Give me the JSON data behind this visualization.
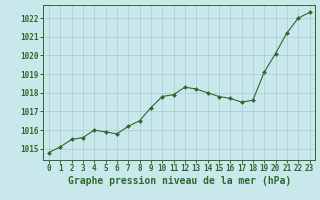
{
  "x": [
    0,
    1,
    2,
    3,
    4,
    5,
    6,
    7,
    8,
    9,
    10,
    11,
    12,
    13,
    14,
    15,
    16,
    17,
    18,
    19,
    20,
    21,
    22,
    23
  ],
  "y": [
    1014.8,
    1015.1,
    1015.5,
    1015.6,
    1016.0,
    1015.9,
    1015.8,
    1016.2,
    1016.5,
    1017.2,
    1017.8,
    1017.9,
    1018.3,
    1018.2,
    1018.0,
    1017.8,
    1017.7,
    1017.5,
    1017.6,
    1019.1,
    1020.1,
    1021.2,
    1022.0,
    1022.3
  ],
  "line_color": "#2d6a2d",
  "marker_color": "#2d6a2d",
  "bg_color": "#c8e8ec",
  "grid_color": "#a8ccd4",
  "title": "Graphe pression niveau de la mer (hPa)",
  "xlabel_ticks": [
    0,
    1,
    2,
    3,
    4,
    5,
    6,
    7,
    8,
    9,
    10,
    11,
    12,
    13,
    14,
    15,
    16,
    17,
    18,
    19,
    20,
    21,
    22,
    23
  ],
  "yticks": [
    1015,
    1016,
    1017,
    1018,
    1019,
    1020,
    1021,
    1022
  ],
  "ylim": [
    1014.4,
    1022.7
  ],
  "xlim": [
    -0.5,
    23.5
  ],
  "tick_color": "#2d6a2d",
  "label_color": "#2d6a2d",
  "title_fontsize": 7,
  "tick_fontsize": 5.5
}
